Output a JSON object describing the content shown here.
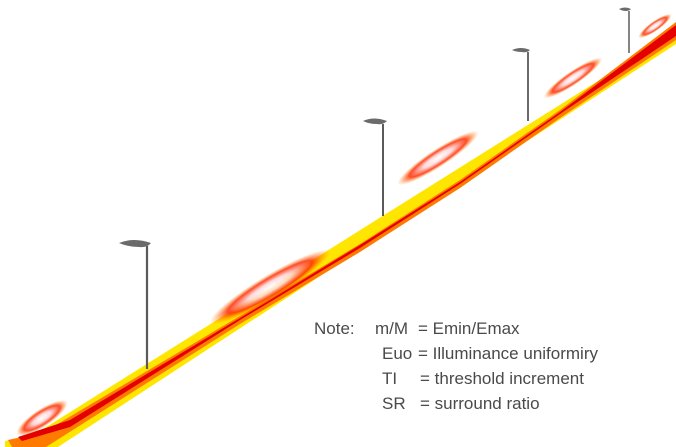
{
  "colors": {
    "background": "#ffffff",
    "pole": "#5a5a5a",
    "luminaire": "#6b6b6b",
    "note_text": "#4a4a4a",
    "falsecolor_outer": "#ffe600",
    "falsecolor_mid": "#ff6a00",
    "falsecolor_core": "#e80000",
    "falsecolor_peak": "#ffffff"
  },
  "icons": [
    "street-lamp-icon"
  ],
  "note": {
    "heading": "Note:",
    "rows": [
      {
        "symbol": "m/M",
        "definition": "= Emin/Emax"
      },
      {
        "symbol": "Euo",
        "definition": "= Illuminance uniformiry"
      },
      {
        "symbol": "TI",
        "definition": "= threshold increment"
      },
      {
        "symbol": "SR",
        "definition": "= surround ratio"
      }
    ]
  }
}
